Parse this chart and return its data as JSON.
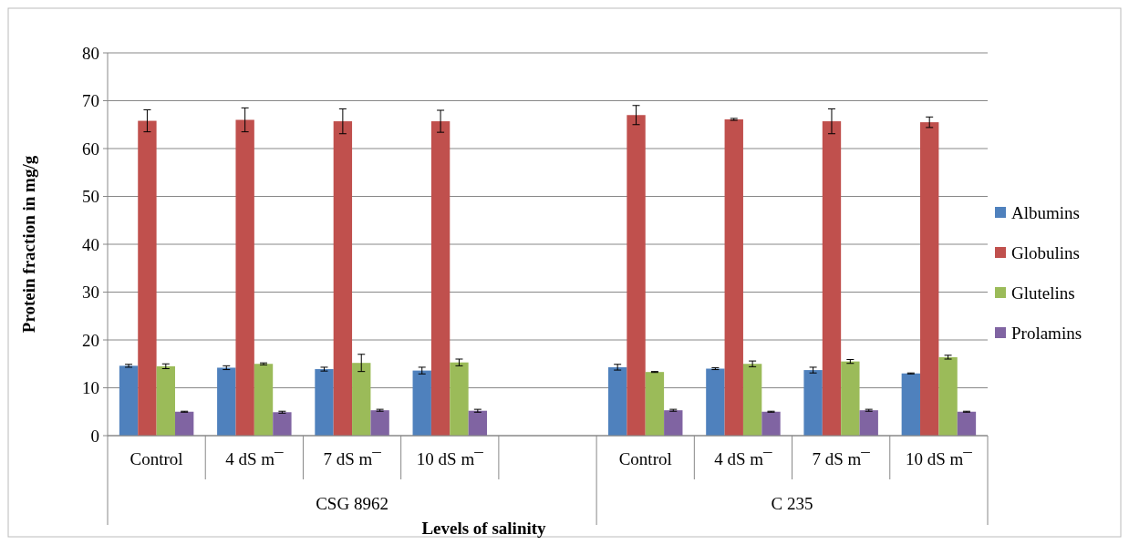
{
  "chart_data": {
    "type": "bar",
    "xlabel": "Levels of salinity",
    "ylabel": "Protein fraction in mg/g",
    "categories": [
      "Control",
      "4 dS m¯",
      "7 dS m¯",
      "10 dS m¯",
      null,
      "Control",
      "4 dS m¯",
      "7 dS m¯",
      "10 dS m¯"
    ],
    "annotations": [
      "CSG 8962",
      "C 235"
    ],
    "series": [
      {
        "name": "Albumins",
        "color": "#4f81bd",
        "values": [
          14.6,
          14.2,
          13.9,
          13.6,
          null,
          14.3,
          14.0,
          13.7,
          13.0
        ],
        "errors": [
          0.3,
          0.4,
          0.4,
          0.7,
          null,
          0.6,
          0.2,
          0.6,
          0.1
        ]
      },
      {
        "name": "Globulins",
        "color": "#c0504d",
        "values": [
          65.8,
          66.0,
          65.7,
          65.7,
          null,
          67.0,
          66.1,
          65.7,
          65.5
        ],
        "errors": [
          2.3,
          2.5,
          2.6,
          2.3,
          null,
          2.0,
          0.2,
          2.6,
          1.1
        ]
      },
      {
        "name": "Glutelins",
        "color": "#9bbb59",
        "values": [
          14.5,
          15.0,
          15.2,
          15.3,
          null,
          13.3,
          15.0,
          15.5,
          16.4
        ],
        "errors": [
          0.5,
          0.2,
          1.8,
          0.7,
          null,
          0.1,
          0.6,
          0.4,
          0.4
        ]
      },
      {
        "name": "Prolamins",
        "color": "#8064a2",
        "values": [
          5.0,
          4.9,
          5.3,
          5.2,
          null,
          5.3,
          5.0,
          5.3,
          5.0
        ],
        "errors": [
          0.1,
          0.2,
          0.2,
          0.3,
          null,
          0.2,
          0.1,
          0.2,
          0.1
        ]
      }
    ],
    "ylim": [
      0,
      80
    ],
    "yticks": [
      0,
      10,
      20,
      30,
      40,
      50,
      60,
      70,
      80
    ],
    "grid": "y",
    "legend": "right"
  }
}
